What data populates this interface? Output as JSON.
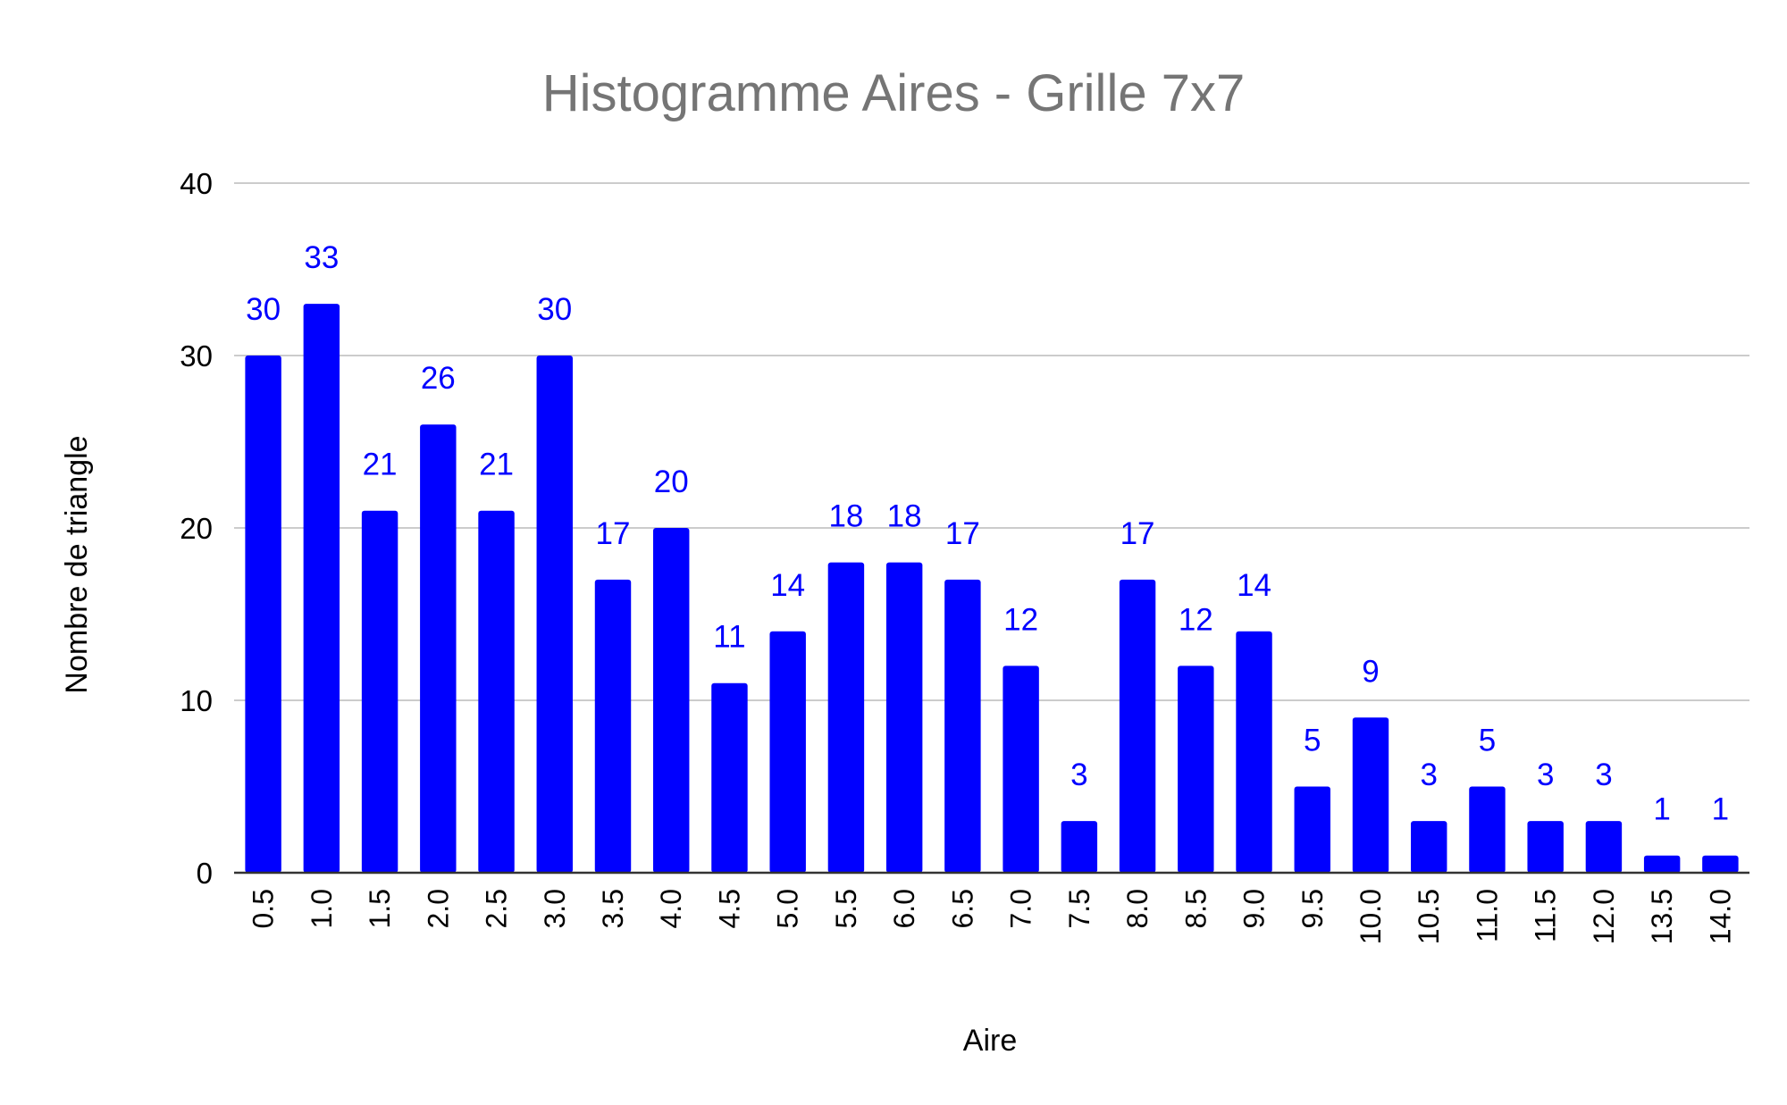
{
  "chart_data": {
    "type": "bar",
    "title": "Histogramme Aires - Grille 7x7",
    "xlabel": "Aire",
    "ylabel": "Nombre de triangle",
    "ylim": [
      0,
      40
    ],
    "yticks": [
      "0",
      "10",
      "20",
      "30",
      "40"
    ],
    "grid": true,
    "legend": "none",
    "bar_color": "#0000ff",
    "label_color": "#0000ff",
    "categories": [
      "0.5",
      "1.0",
      "1.5",
      "2.0",
      "2.5",
      "3.0",
      "3.5",
      "4.0",
      "4.5",
      "5.0",
      "5.5",
      "6.0",
      "6.5",
      "7.0",
      "7.5",
      "8.0",
      "8.5",
      "9.0",
      "9.5",
      "10.0",
      "10.5",
      "11.0",
      "11.5",
      "12.0",
      "13.5",
      "14.0"
    ],
    "values": [
      30,
      33,
      21,
      26,
      21,
      30,
      17,
      20,
      11,
      14,
      18,
      18,
      17,
      12,
      3,
      17,
      12,
      14,
      5,
      9,
      3,
      5,
      3,
      3,
      1,
      1
    ]
  }
}
